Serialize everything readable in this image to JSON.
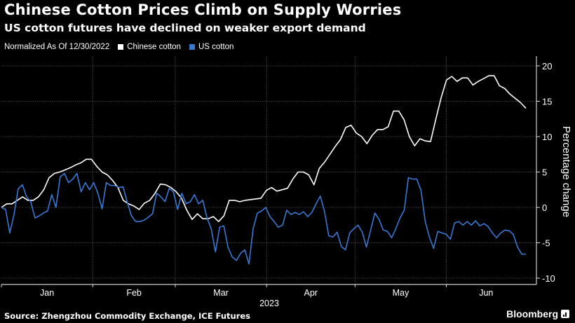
{
  "header": {
    "title": "Chinese Cotton Prices Climb on Supply Worries",
    "subtitle": "US cotton futures have declined on weaker export demand"
  },
  "legend": {
    "note": "Normalized As Of 12/30/2022",
    "items": [
      {
        "label": "Chinese cotton",
        "color": "#ffffff"
      },
      {
        "label": "US cotton",
        "color": "#3a78d4"
      }
    ]
  },
  "footer": {
    "source": "Source: Zhengzhou Commodity Exchange, ICE Futures",
    "brand": "Bloomberg"
  },
  "chart_data": {
    "type": "line",
    "title": "Chinese Cotton Prices Climb on Supply Worries",
    "subtitle": "US cotton futures have declined on weaker export demand",
    "xlabel": "2023",
    "ylabel": "Percentage change",
    "ylim": [
      -10,
      20
    ],
    "yticks": [
      20,
      15,
      10,
      5,
      0,
      -5,
      -10
    ],
    "xlim_days": [
      0,
      178
    ],
    "xticks": [
      {
        "label": "Jan",
        "day": 0
      },
      {
        "label": "Feb",
        "day": 31
      },
      {
        "label": "Mar",
        "day": 59
      },
      {
        "label": "Apr",
        "day": 90
      },
      {
        "label": "May",
        "day": 120
      },
      {
        "label": "Jun",
        "day": 151
      }
    ],
    "grid": true,
    "legend_position": "top-left",
    "series": [
      {
        "name": "Chinese cotton",
        "color": "#ffffff",
        "points": [
          [
            0,
            0
          ],
          [
            2,
            0.5
          ],
          [
            4,
            0.5
          ],
          [
            6,
            1
          ],
          [
            8,
            1.5
          ],
          [
            10,
            1
          ],
          [
            12,
            1
          ],
          [
            14,
            1.5
          ],
          [
            16,
            2.5
          ],
          [
            18,
            4.2
          ],
          [
            20,
            4.8
          ],
          [
            22,
            5
          ],
          [
            24,
            5.3
          ],
          [
            26,
            5.6
          ],
          [
            28,
            6
          ],
          [
            30,
            6.3
          ],
          [
            32,
            6.8
          ],
          [
            34,
            6.8
          ],
          [
            36,
            5.8
          ],
          [
            38,
            5
          ],
          [
            40,
            4.6
          ],
          [
            42,
            3.8
          ],
          [
            44,
            2.8
          ],
          [
            46,
            1
          ],
          [
            48,
            0.5
          ],
          [
            50,
            0.2
          ],
          [
            52,
            -0.3
          ],
          [
            54,
            0.6
          ],
          [
            56,
            1
          ],
          [
            58,
            2
          ],
          [
            60,
            3.3
          ],
          [
            62,
            3.2
          ],
          [
            64,
            2.8
          ],
          [
            66,
            2.2
          ],
          [
            68,
            1.3
          ],
          [
            70,
            -0.4
          ],
          [
            72,
            -1.7
          ],
          [
            74,
            -0.9
          ],
          [
            76,
            -1.6
          ],
          [
            78,
            -1.6
          ],
          [
            80,
            -1.3
          ],
          [
            82,
            -2
          ],
          [
            84,
            -1.2
          ],
          [
            86,
            1
          ],
          [
            88,
            1
          ],
          [
            90,
            0.8
          ],
          [
            92,
            1
          ],
          [
            94,
            1.1
          ],
          [
            96,
            1.2
          ],
          [
            98,
            1.3
          ],
          [
            100,
            2.4
          ],
          [
            102,
            2.8
          ],
          [
            104,
            2.3
          ],
          [
            106,
            2.5
          ],
          [
            108,
            2.7
          ],
          [
            110,
            4
          ],
          [
            112,
            5
          ],
          [
            114,
            5
          ],
          [
            116,
            4.6
          ],
          [
            118,
            3.2
          ],
          [
            120,
            5.5
          ],
          [
            122,
            6.4
          ],
          [
            124,
            7.5
          ],
          [
            126,
            8.6
          ],
          [
            128,
            9.6
          ],
          [
            130,
            11.3
          ],
          [
            132,
            11.6
          ],
          [
            134,
            10.5
          ],
          [
            136,
            10
          ],
          [
            138,
            9
          ],
          [
            140,
            10.2
          ],
          [
            142,
            11
          ],
          [
            144,
            11
          ],
          [
            146,
            11.4
          ],
          [
            148,
            13.6
          ],
          [
            150,
            13.6
          ],
          [
            152,
            12.4
          ],
          [
            154,
            10
          ],
          [
            156,
            8.7
          ],
          [
            158,
            9.7
          ],
          [
            160,
            9.4
          ],
          [
            162,
            9.3
          ],
          [
            164,
            12.5
          ],
          [
            166,
            15.5
          ],
          [
            168,
            18
          ],
          [
            170,
            18.5
          ],
          [
            172,
            17.8
          ],
          [
            174,
            18.3
          ],
          [
            176,
            18.3
          ],
          [
            178,
            17.3
          ],
          [
            180,
            17.8
          ],
          [
            182,
            18.2
          ],
          [
            184,
            18.6
          ],
          [
            186,
            18.6
          ],
          [
            188,
            17.2
          ],
          [
            190,
            16.8
          ],
          [
            192,
            16
          ],
          [
            194,
            15.4
          ],
          [
            196,
            14.8
          ],
          [
            198,
            14
          ]
        ]
      },
      {
        "name": "US cotton",
        "color": "#3a78d4",
        "points": [
          [
            0,
            0
          ],
          [
            2,
            -0.3
          ],
          [
            4,
            -3.6
          ],
          [
            6,
            -1
          ],
          [
            8,
            2.6
          ],
          [
            10,
            3.2
          ],
          [
            12,
            1.5
          ],
          [
            14,
            0.8
          ],
          [
            16,
            -1.5
          ],
          [
            18,
            -1.2
          ],
          [
            20,
            -0.8
          ],
          [
            22,
            -0.5
          ],
          [
            24,
            1.8
          ],
          [
            26,
            0
          ],
          [
            28,
            4.3
          ],
          [
            30,
            4.8
          ],
          [
            32,
            3.5
          ],
          [
            34,
            4
          ],
          [
            36,
            4.8
          ],
          [
            38,
            2.2
          ],
          [
            40,
            3.5
          ],
          [
            42,
            2.5
          ],
          [
            44,
            3.5
          ],
          [
            46,
            2
          ],
          [
            48,
            -0.2
          ],
          [
            50,
            3.5
          ],
          [
            52,
            3.1
          ],
          [
            54,
            3.1
          ],
          [
            56,
            2.8
          ],
          [
            58,
            2.9
          ],
          [
            60,
            0.7
          ],
          [
            62,
            -1.2
          ],
          [
            64,
            -2
          ],
          [
            66,
            -2
          ],
          [
            68,
            -1.8
          ],
          [
            70,
            -1.4
          ],
          [
            72,
            -0.9
          ],
          [
            74,
            2
          ],
          [
            76,
            1.5
          ],
          [
            78,
            0.8
          ],
          [
            80,
            2.7
          ],
          [
            82,
            2.2
          ],
          [
            84,
            -0.3
          ],
          [
            86,
            2
          ],
          [
            88,
            0.5
          ],
          [
            90,
            0.8
          ],
          [
            92,
            1.8
          ],
          [
            94,
            0.5
          ],
          [
            96,
            1
          ],
          [
            98,
            -1.5
          ],
          [
            100,
            -3
          ],
          [
            102,
            -6.3
          ],
          [
            104,
            -2.8
          ],
          [
            106,
            -2.6
          ],
          [
            108,
            -5.6
          ],
          [
            110,
            -7
          ],
          [
            112,
            -7.5
          ],
          [
            114,
            -6.5
          ],
          [
            116,
            -6
          ],
          [
            118,
            -8
          ],
          [
            120,
            -3
          ],
          [
            122,
            -0.8
          ],
          [
            124,
            -0.5
          ],
          [
            126,
            0
          ],
          [
            128,
            -1.3
          ],
          [
            130,
            -2
          ],
          [
            132,
            -2.8
          ],
          [
            134,
            -2.5
          ],
          [
            136,
            -0.4
          ],
          [
            138,
            -1
          ],
          [
            140,
            -0.7
          ],
          [
            142,
            -1
          ],
          [
            144,
            -0.6
          ],
          [
            146,
            -1.3
          ],
          [
            148,
            -0.7
          ],
          [
            150,
            0.5
          ],
          [
            152,
            1.6
          ],
          [
            154,
            -0.6
          ],
          [
            156,
            -4
          ],
          [
            158,
            -4.2
          ],
          [
            160,
            -3.5
          ],
          [
            162,
            -5.5
          ],
          [
            164,
            -6
          ],
          [
            166,
            -3.6
          ],
          [
            168,
            -3
          ],
          [
            170,
            -2.5
          ],
          [
            172,
            -3.5
          ],
          [
            174,
            -5.6
          ],
          [
            176,
            -3.2
          ],
          [
            178,
            -0.8
          ],
          [
            180,
            -1.7
          ],
          [
            182,
            -3.2
          ],
          [
            184,
            -3.4
          ],
          [
            186,
            -4.3
          ],
          [
            188,
            -3
          ],
          [
            190,
            -1.5
          ],
          [
            192,
            -0.4
          ],
          [
            194,
            4.2
          ],
          [
            196,
            4
          ],
          [
            198,
            4
          ],
          [
            200,
            2.4
          ],
          [
            202,
            -2
          ],
          [
            204,
            -4.2
          ],
          [
            206,
            -5.8
          ],
          [
            208,
            -3.4
          ],
          [
            210,
            -3.6
          ],
          [
            212,
            -3.8
          ],
          [
            214,
            -4.5
          ],
          [
            216,
            -2.2
          ],
          [
            218,
            -2
          ],
          [
            220,
            -2.5
          ],
          [
            222,
            -2
          ],
          [
            224,
            -2.5
          ],
          [
            226,
            -1.9
          ],
          [
            228,
            -2.6
          ],
          [
            230,
            -2.3
          ],
          [
            232,
            -2.7
          ],
          [
            234,
            -3.6
          ],
          [
            236,
            -4.3
          ],
          [
            238,
            -3.6
          ],
          [
            240,
            -3.2
          ],
          [
            242,
            -3.3
          ],
          [
            244,
            -3.8
          ],
          [
            246,
            -5.6
          ],
          [
            248,
            -6.6
          ],
          [
            250,
            -6.6
          ]
        ]
      }
    ]
  }
}
